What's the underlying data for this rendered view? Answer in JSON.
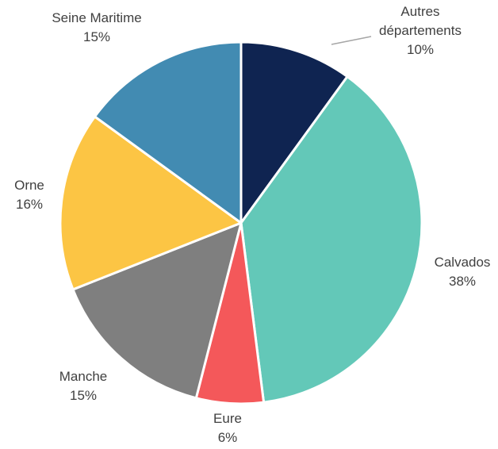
{
  "chart_data": {
    "type": "pie",
    "title": "",
    "slices": [
      {
        "name": "Autres départements",
        "name_lines": [
          "Autres",
          "départements"
        ],
        "value": 10,
        "label": "10%",
        "color": "#0f2451"
      },
      {
        "name": "Calvados",
        "name_lines": [
          "Calvados"
        ],
        "value": 38,
        "label": "38%",
        "color": "#63c8b8"
      },
      {
        "name": "Eure",
        "name_lines": [
          "Eure"
        ],
        "value": 6,
        "label": "6%",
        "color": "#f4585a"
      },
      {
        "name": "Manche",
        "name_lines": [
          "Manche"
        ],
        "value": 15,
        "label": "15%",
        "color": "#7f7f7f"
      },
      {
        "name": "Orne",
        "name_lines": [
          "Orne"
        ],
        "value": 16,
        "label": "16%",
        "color": "#fcc544"
      },
      {
        "name": "Seine Maritime",
        "name_lines": [
          "Seine Maritime"
        ],
        "value": 15,
        "label": "15%",
        "color": "#428bb2"
      }
    ],
    "legend": "none"
  }
}
